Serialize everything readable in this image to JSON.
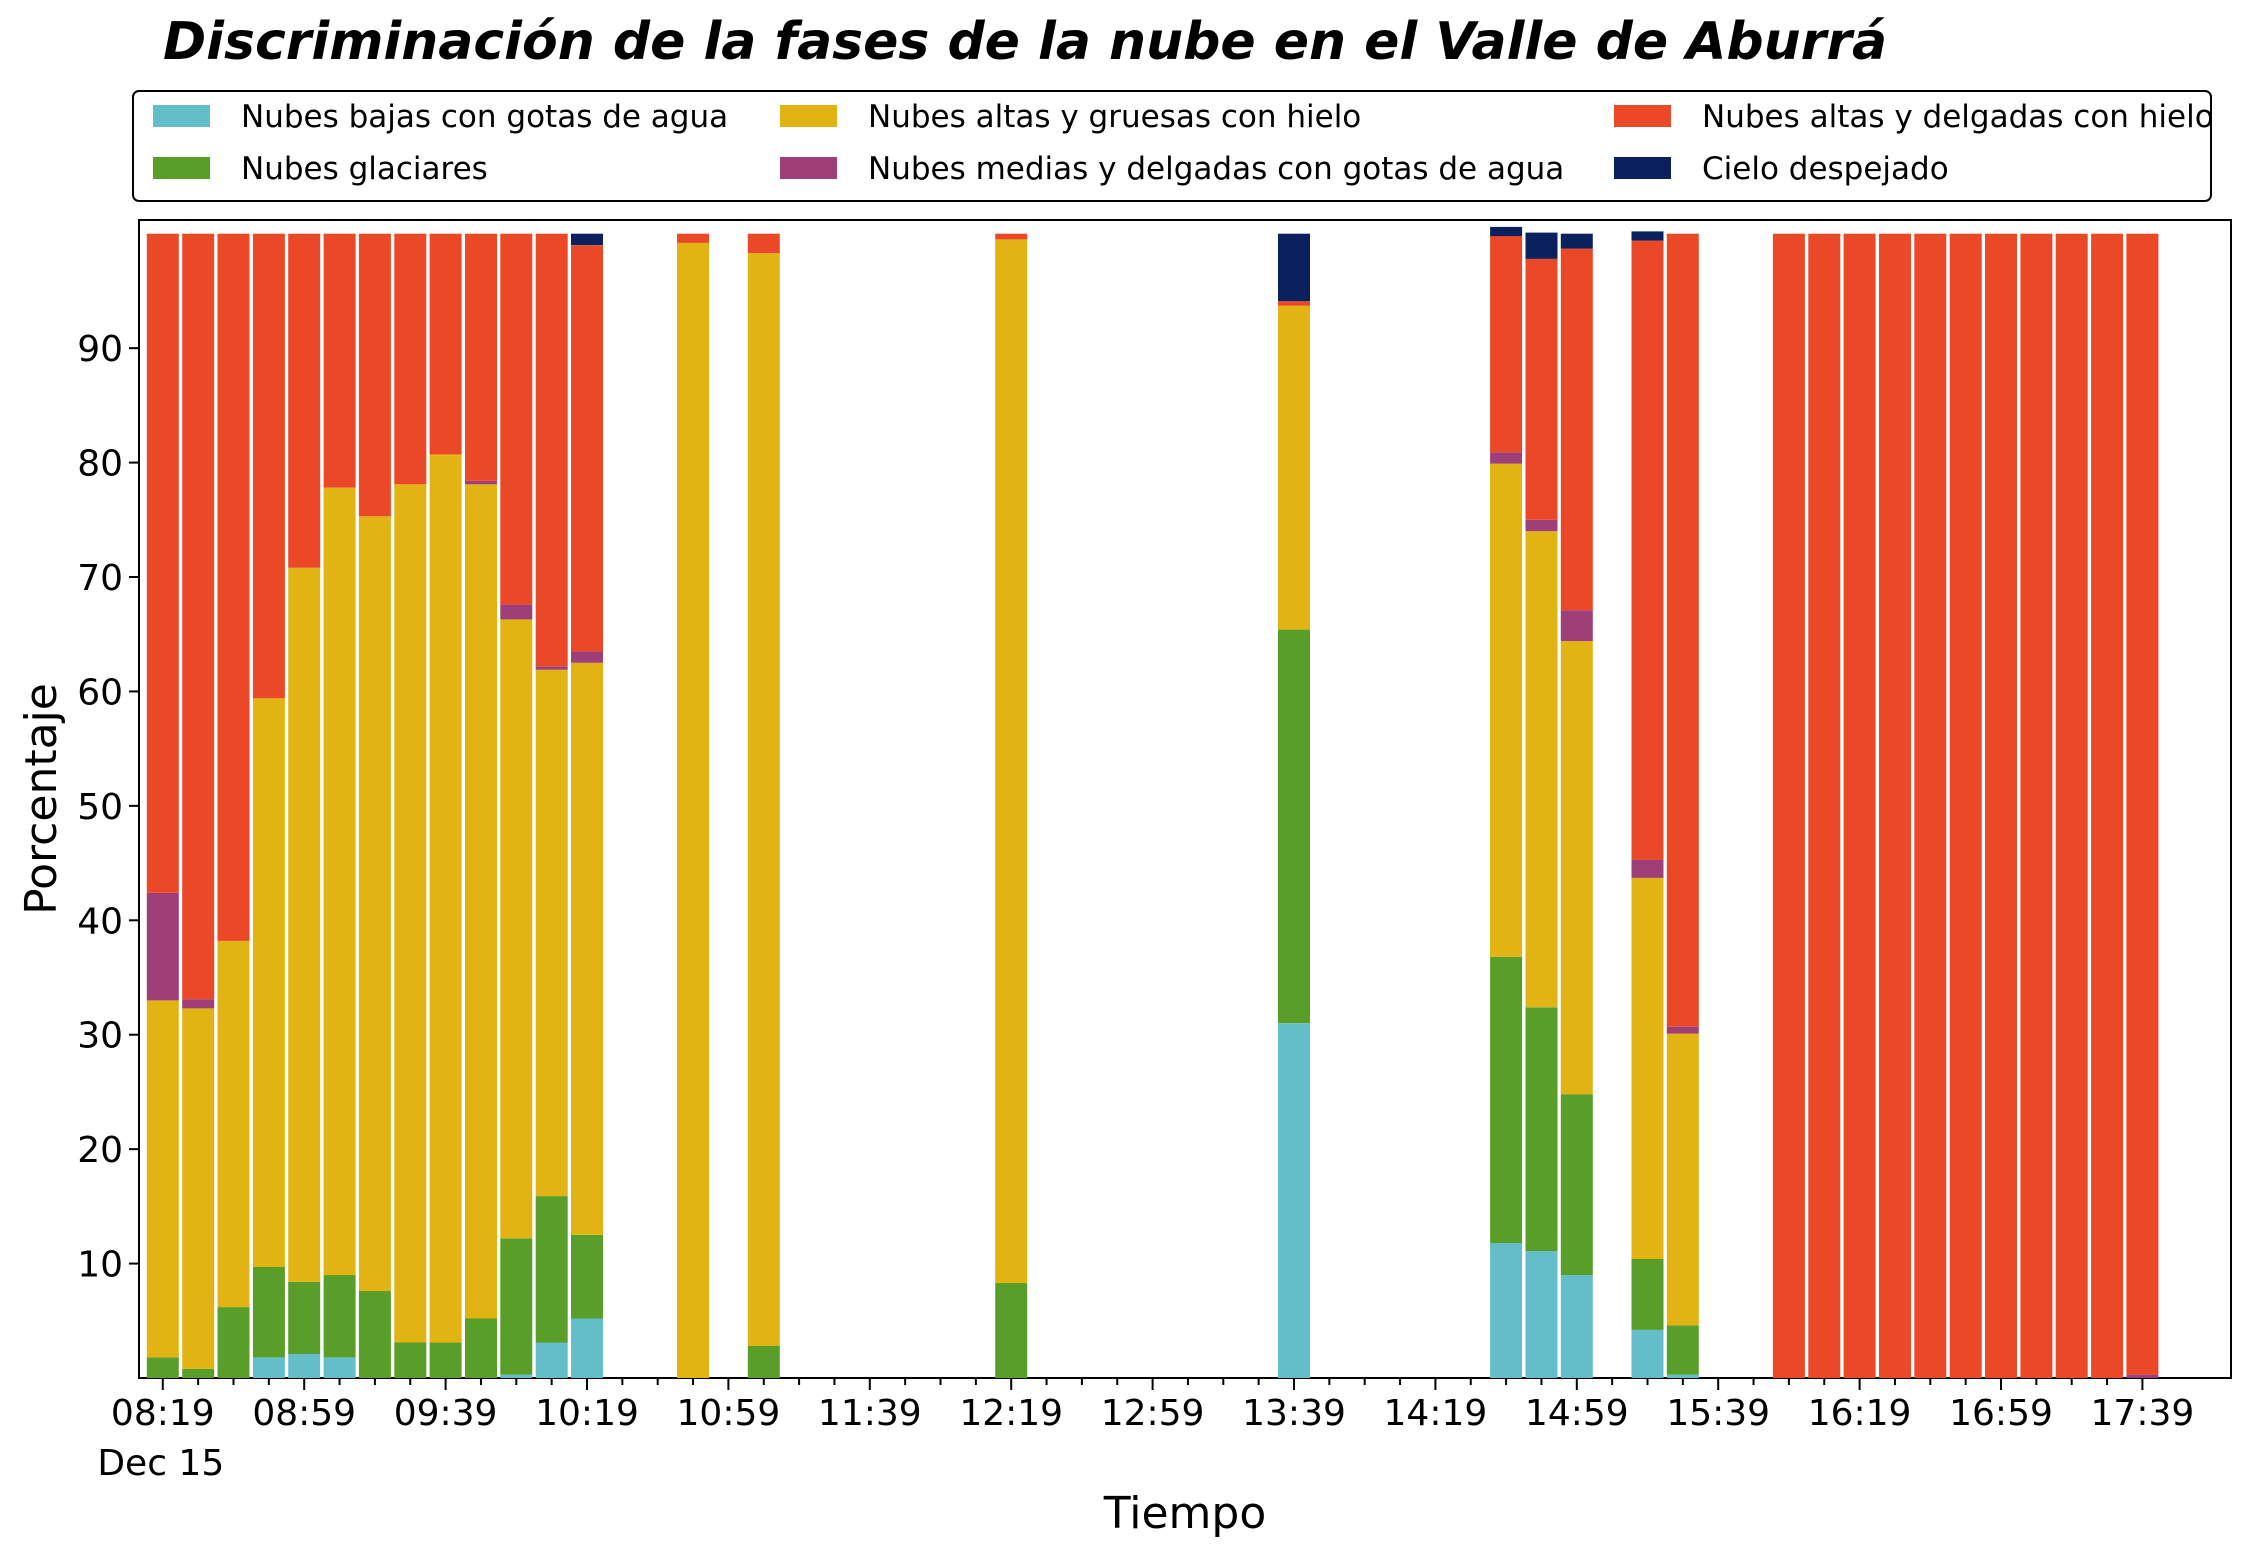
{
  "chart_data": {
    "type": "bar",
    "stacked": true,
    "title": "Discriminación de la fases de la nube en el Valle de Aburrá",
    "xlabel": "Tiempo",
    "ylabel": "Porcentaje",
    "ylim": [
      0,
      100
    ],
    "yticks": [
      10,
      20,
      30,
      40,
      50,
      60,
      70,
      80,
      90
    ],
    "x_tick_labels": [
      "08:19",
      "08:59",
      "09:39",
      "10:19",
      "10:59",
      "11:39",
      "12:19",
      "12:59",
      "13:39",
      "14:19",
      "14:59",
      "15:39",
      "16:19",
      "16:59",
      "17:39"
    ],
    "x_sublabel": "Dec 15",
    "legend_position": "top",
    "times": [
      "08:19",
      "08:29",
      "08:39",
      "08:49",
      "08:59",
      "09:09",
      "09:19",
      "09:29",
      "09:39",
      "09:49",
      "09:59",
      "10:09",
      "10:19",
      "10:29",
      "10:39",
      "10:49",
      "10:59",
      "11:09",
      "11:19",
      "11:29",
      "11:39",
      "11:49",
      "11:59",
      "12:09",
      "12:19",
      "12:29",
      "12:39",
      "12:49",
      "12:59",
      "13:09",
      "13:19",
      "13:29",
      "13:39",
      "13:49",
      "13:59",
      "14:09",
      "14:19",
      "14:29",
      "14:39",
      "14:49",
      "14:59",
      "15:09",
      "15:19",
      "15:29",
      "15:39",
      "15:49",
      "15:59",
      "16:09",
      "16:19",
      "16:29",
      "16:39",
      "16:49",
      "16:59",
      "17:09",
      "17:19",
      "17:29",
      "17:39"
    ],
    "series": [
      {
        "name": "Nubes bajas con gotas de agua",
        "color": "#64bec9",
        "values": [
          0,
          0,
          0,
          1.8,
          2.1,
          1.8,
          0,
          0,
          0,
          0,
          0.3,
          3.1,
          5.2,
          null,
          null,
          0,
          null,
          null,
          null,
          null,
          null,
          null,
          null,
          null,
          0,
          null,
          null,
          null,
          null,
          null,
          null,
          null,
          31,
          null,
          null,
          null,
          null,
          null,
          11.8,
          11.1,
          9,
          null,
          4.2,
          0.3,
          null,
          null,
          0,
          0,
          0,
          0,
          0,
          0,
          0,
          0,
          0,
          0,
          0
        ]
      },
      {
        "name": "Nubes glaciares",
        "color": "#5a9e2a",
        "values": [
          1.8,
          0.8,
          6.2,
          7.9,
          6.3,
          7.2,
          7.6,
          3.1,
          3.1,
          5.2,
          11.9,
          12.8,
          7.3,
          null,
          null,
          0,
          null,
          2.8,
          null,
          null,
          null,
          null,
          null,
          null,
          8.3,
          null,
          null,
          null,
          null,
          null,
          null,
          null,
          34.4,
          null,
          null,
          null,
          null,
          null,
          25,
          21.3,
          15.8,
          null,
          6.2,
          4.3,
          null,
          null,
          0,
          0,
          0,
          0,
          0,
          0,
          0,
          0,
          0,
          0,
          0
        ]
      },
      {
        "name": "Nubes altas y gruesas con hielo",
        "color": "#e2b413",
        "values": [
          31.2,
          31.5,
          32,
          49.7,
          62.4,
          68.8,
          67.7,
          75,
          77.6,
          72.9,
          54.1,
          46,
          50,
          null,
          null,
          99.2,
          null,
          95.5,
          null,
          null,
          null,
          null,
          null,
          null,
          91.2,
          null,
          null,
          null,
          null,
          null,
          null,
          null,
          28.3,
          null,
          null,
          null,
          null,
          null,
          43.1,
          41.6,
          39.6,
          null,
          33.3,
          25.5,
          null,
          null,
          0,
          0,
          0,
          0,
          0,
          0,
          0,
          0,
          0,
          0,
          0
        ]
      },
      {
        "name": "Nubes medias y delgadas con gotas de agua",
        "color": "#9e4077",
        "values": [
          9.4,
          0.8,
          0,
          0,
          0,
          0,
          0,
          0,
          0,
          0.3,
          1.3,
          0.3,
          1,
          null,
          null,
          0,
          null,
          0,
          null,
          null,
          null,
          null,
          null,
          null,
          0,
          null,
          null,
          null,
          null,
          null,
          null,
          null,
          0,
          null,
          null,
          null,
          null,
          null,
          1,
          1,
          2.7,
          null,
          1.6,
          0.6,
          null,
          null,
          0,
          0,
          0,
          0,
          0,
          0,
          0,
          0,
          0,
          0,
          0.3
        ]
      },
      {
        "name": "Nubes altas y delgadas con hielo",
        "color": "#eb4828",
        "values": [
          57.6,
          66.9,
          61.8,
          40.6,
          29.2,
          22.2,
          24.7,
          21.9,
          19.3,
          21.6,
          32.4,
          37.8,
          35.5,
          null,
          null,
          0.8,
          null,
          1.7,
          null,
          null,
          null,
          null,
          null,
          null,
          0.5,
          null,
          null,
          null,
          null,
          null,
          null,
          null,
          0.4,
          null,
          null,
          null,
          null,
          null,
          18.9,
          22.8,
          31.6,
          null,
          54.1,
          69.3,
          null,
          null,
          100,
          100,
          100,
          100,
          100,
          100,
          100,
          100,
          100,
          100,
          99.7
        ]
      },
      {
        "name": "Cielo despejado",
        "color": "#0b215d",
        "values": [
          0,
          0,
          0,
          0,
          0,
          0,
          0,
          0,
          0,
          0,
          0,
          0,
          1,
          null,
          null,
          0,
          null,
          0,
          null,
          null,
          null,
          null,
          null,
          null,
          0,
          null,
          null,
          null,
          null,
          null,
          null,
          null,
          5.9,
          null,
          null,
          null,
          null,
          null,
          0.8,
          2.3,
          1.3,
          null,
          0.8,
          0,
          null,
          null,
          0,
          0,
          0,
          0,
          0,
          0,
          0,
          0,
          0,
          0,
          0
        ]
      }
    ]
  }
}
